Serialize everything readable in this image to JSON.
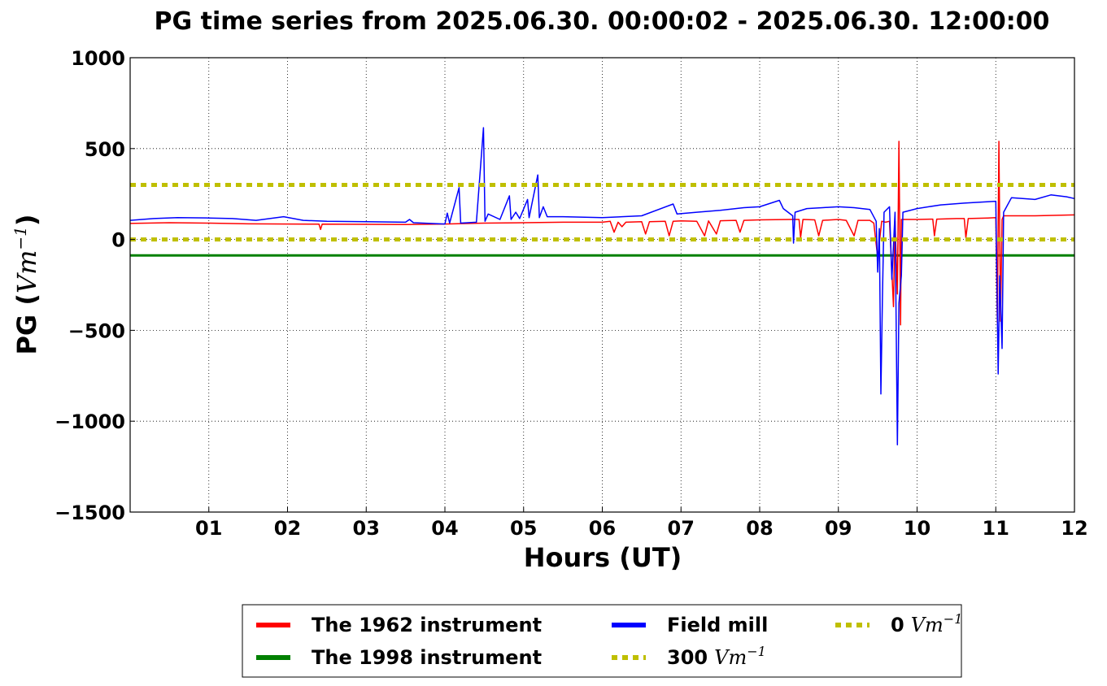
{
  "chart_data": {
    "type": "line",
    "title": "PG time series from 2025.06.30. 00:00:02 - 2025.06.30. 12:00:00",
    "xlabel": "Hours (UT)",
    "ylabel_main": "PG (",
    "ylabel_unit": "Vm",
    "ylabel_exp": "−1",
    "ylabel_close": ")",
    "xlim": [
      0,
      12
    ],
    "ylim": [
      -1500,
      1000
    ],
    "grid": true,
    "legend_placement": "below-center",
    "x_ticks": [
      {
        "v": 1,
        "label": "01"
      },
      {
        "v": 2,
        "label": "02"
      },
      {
        "v": 3,
        "label": "03"
      },
      {
        "v": 4,
        "label": "04"
      },
      {
        "v": 5,
        "label": "05"
      },
      {
        "v": 6,
        "label": "06"
      },
      {
        "v": 7,
        "label": "07"
      },
      {
        "v": 8,
        "label": "08"
      },
      {
        "v": 9,
        "label": "09"
      },
      {
        "v": 10,
        "label": "10"
      },
      {
        "v": 11,
        "label": "11"
      },
      {
        "v": 12,
        "label": "12"
      }
    ],
    "y_ticks": [
      {
        "v": 1000,
        "label": "1000"
      },
      {
        "v": 500,
        "label": "500"
      },
      {
        "v": 0,
        "label": "0"
      },
      {
        "v": -500,
        "label": "−500"
      },
      {
        "v": -1000,
        "label": "−1000"
      },
      {
        "v": -1500,
        "label": "−1500"
      }
    ],
    "series": [
      {
        "name": "The 1962 instrument",
        "color": "#ff0000",
        "style": "solid",
        "points": [
          [
            0,
            88
          ],
          [
            0.5,
            92
          ],
          [
            1,
            90
          ],
          [
            1.5,
            86
          ],
          [
            2,
            85
          ],
          [
            2.4,
            84
          ],
          [
            2.42,
            55
          ],
          [
            2.44,
            84
          ],
          [
            3,
            83
          ],
          [
            3.5,
            82
          ],
          [
            4,
            85
          ],
          [
            4.5,
            90
          ],
          [
            5,
            92
          ],
          [
            5.5,
            95
          ],
          [
            6,
            95
          ],
          [
            6.1,
            100
          ],
          [
            6.15,
            40
          ],
          [
            6.2,
            95
          ],
          [
            6.25,
            70
          ],
          [
            6.3,
            95
          ],
          [
            6.5,
            98
          ],
          [
            6.55,
            30
          ],
          [
            6.6,
            98
          ],
          [
            6.8,
            100
          ],
          [
            6.85,
            20
          ],
          [
            6.9,
            100
          ],
          [
            7,
            102
          ],
          [
            7.2,
            100
          ],
          [
            7.3,
            20
          ],
          [
            7.35,
            102
          ],
          [
            7.45,
            30
          ],
          [
            7.5,
            103
          ],
          [
            7.7,
            105
          ],
          [
            7.75,
            40
          ],
          [
            7.8,
            105
          ],
          [
            8,
            108
          ],
          [
            8.4,
            110
          ],
          [
            8.5,
            110
          ],
          [
            8.52,
            10
          ],
          [
            8.55,
            110
          ],
          [
            8.7,
            108
          ],
          [
            8.75,
            20
          ],
          [
            8.8,
            105
          ],
          [
            9,
            110
          ],
          [
            9.1,
            105
          ],
          [
            9.2,
            20
          ],
          [
            9.25,
            105
          ],
          [
            9.4,
            105
          ],
          [
            9.45,
            90
          ],
          [
            9.5,
            -100
          ],
          [
            9.55,
            100
          ],
          [
            9.6,
            95
          ],
          [
            9.65,
            100
          ],
          [
            9.7,
            -370
          ],
          [
            9.72,
            100
          ],
          [
            9.75,
            -300
          ],
          [
            9.77,
            540
          ],
          [
            9.79,
            -470
          ],
          [
            9.8,
            110
          ],
          [
            9.9,
            110
          ],
          [
            10,
            110
          ],
          [
            10.2,
            112
          ],
          [
            10.22,
            20
          ],
          [
            10.25,
            112
          ],
          [
            10.5,
            115
          ],
          [
            10.6,
            115
          ],
          [
            10.62,
            10
          ],
          [
            10.65,
            115
          ],
          [
            10.9,
            118
          ],
          [
            11,
            120
          ],
          [
            11.02,
            -460
          ],
          [
            11.04,
            540
          ],
          [
            11.06,
            -450
          ],
          [
            11.08,
            110
          ],
          [
            11.1,
            130
          ],
          [
            11.5,
            130
          ],
          [
            12,
            135
          ]
        ]
      },
      {
        "name": "The 1998 instrument",
        "color": "#008000",
        "style": "solid",
        "points": [
          [
            0,
            -88
          ],
          [
            12,
            -88
          ]
        ]
      },
      {
        "name": "Field mill",
        "color": "#0000ff",
        "style": "solid",
        "points": [
          [
            0,
            105
          ],
          [
            0.3,
            115
          ],
          [
            0.6,
            120
          ],
          [
            1,
            118
          ],
          [
            1.3,
            115
          ],
          [
            1.6,
            105
          ],
          [
            1.95,
            125
          ],
          [
            2.2,
            105
          ],
          [
            2.5,
            100
          ],
          [
            3,
            98
          ],
          [
            3.5,
            95
          ],
          [
            3.55,
            110
          ],
          [
            3.6,
            92
          ],
          [
            4,
            85
          ],
          [
            4.03,
            145
          ],
          [
            4.06,
            90
          ],
          [
            4.18,
            285
          ],
          [
            4.2,
            90
          ],
          [
            4.4,
            95
          ],
          [
            4.49,
            615
          ],
          [
            4.51,
            100
          ],
          [
            4.55,
            140
          ],
          [
            4.7,
            110
          ],
          [
            4.82,
            240
          ],
          [
            4.84,
            110
          ],
          [
            4.9,
            150
          ],
          [
            4.95,
            115
          ],
          [
            5.05,
            220
          ],
          [
            5.07,
            120
          ],
          [
            5.18,
            355
          ],
          [
            5.2,
            120
          ],
          [
            5.25,
            180
          ],
          [
            5.3,
            125
          ],
          [
            5.5,
            125
          ],
          [
            6,
            120
          ],
          [
            6.5,
            130
          ],
          [
            6.9,
            195
          ],
          [
            6.95,
            140
          ],
          [
            7.2,
            150
          ],
          [
            7.5,
            160
          ],
          [
            7.8,
            175
          ],
          [
            8,
            180
          ],
          [
            8.25,
            215
          ],
          [
            8.3,
            170
          ],
          [
            8.42,
            130
          ],
          [
            8.43,
            -20
          ],
          [
            8.45,
            150
          ],
          [
            8.6,
            170
          ],
          [
            8.8,
            175
          ],
          [
            9,
            180
          ],
          [
            9.2,
            175
          ],
          [
            9.4,
            165
          ],
          [
            9.48,
            100
          ],
          [
            9.5,
            -180
          ],
          [
            9.52,
            60
          ],
          [
            9.54,
            -850
          ],
          [
            9.56,
            -320
          ],
          [
            9.58,
            150
          ],
          [
            9.65,
            180
          ],
          [
            9.68,
            -220
          ],
          [
            9.72,
            150
          ],
          [
            9.75,
            -1130
          ],
          [
            9.77,
            -350
          ],
          [
            9.8,
            -200
          ],
          [
            9.82,
            150
          ],
          [
            10,
            170
          ],
          [
            10.3,
            190
          ],
          [
            10.6,
            200
          ],
          [
            11,
            210
          ],
          [
            11.03,
            -740
          ],
          [
            11.05,
            -200
          ],
          [
            11.08,
            -600
          ],
          [
            11.1,
            150
          ],
          [
            11.2,
            230
          ],
          [
            11.5,
            220
          ],
          [
            11.7,
            245
          ],
          [
            11.9,
            235
          ],
          [
            12,
            225
          ]
        ]
      },
      {
        "name": "300",
        "name_unit": "Vm",
        "name_exp": "−1",
        "color": "#bfbf00",
        "style": "dotted",
        "points": [
          [
            0,
            300
          ],
          [
            12,
            300
          ]
        ]
      },
      {
        "name": "0",
        "name_unit": "Vm",
        "name_exp": "−1",
        "color": "#bfbf00",
        "style": "dotted",
        "points": [
          [
            0,
            0
          ],
          [
            12,
            0
          ]
        ]
      }
    ]
  }
}
